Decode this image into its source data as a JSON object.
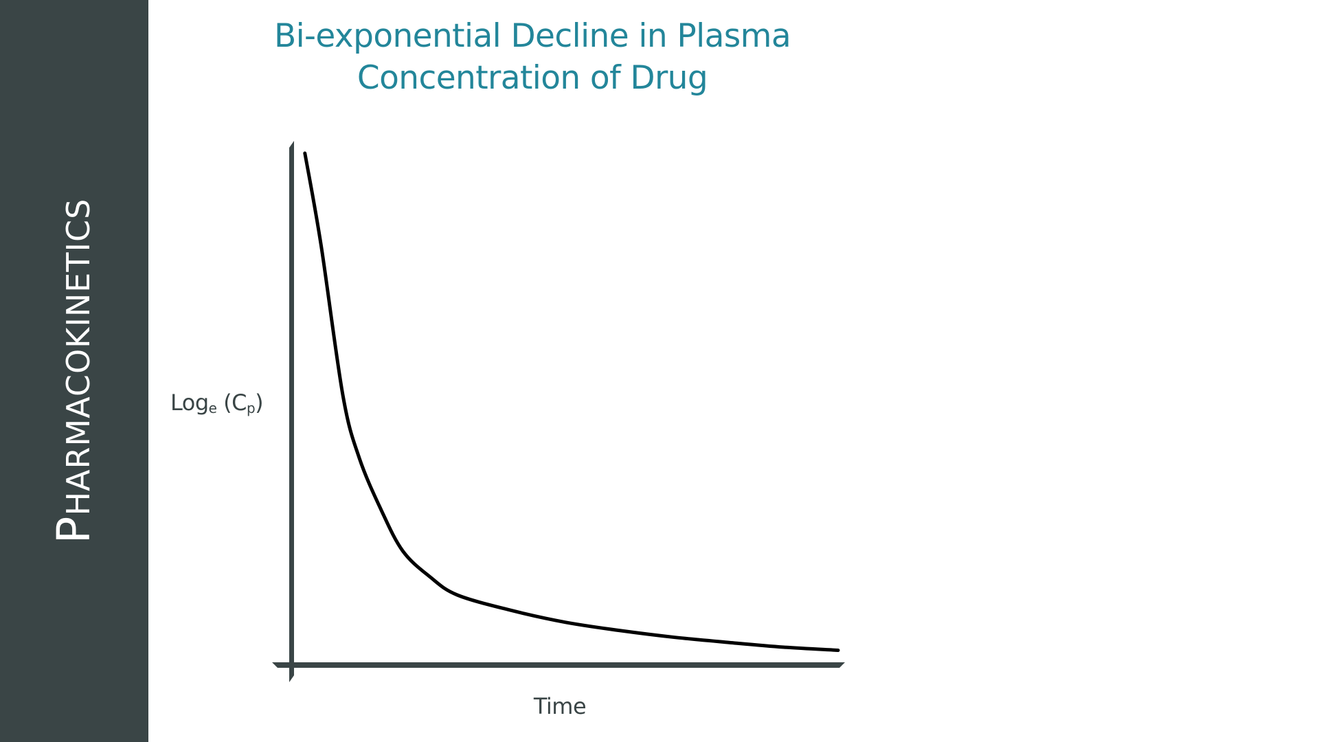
{
  "sidebar": {
    "title": "Pharmacokinetics"
  },
  "colors": {
    "sidebar_bg": "#3a4546",
    "sidebar_text": "#ffffff",
    "title": "#23869a",
    "axis": "#3a4546",
    "curve": "#000000",
    "label": "#3a4546"
  },
  "chart_data": {
    "type": "line",
    "title": "Bi-exponential Decline in Plasma Concentration of Drug",
    "title_lines": [
      "Bi-exponential Decline in Plasma",
      "Concentration of Drug"
    ],
    "xlabel": "Time",
    "ylabel": {
      "base": "Log",
      "sub1": "e",
      "mid": " (C",
      "sub2": "p",
      "end": ")"
    },
    "grid": false,
    "legend": "none",
    "xlim": [
      0,
      10
    ],
    "ylim": [
      0,
      10
    ],
    "series": [
      {
        "name": "Loge(Cp)",
        "x": [
          0.2,
          0.5,
          0.9,
          1.2,
          1.6,
          2.0,
          2.5,
          3.0,
          4.0,
          5.0,
          6.0,
          7.0,
          8.0,
          9.0,
          10.0
        ],
        "y": [
          9.8,
          8.0,
          5.1,
          3.9,
          2.9,
          2.1,
          1.6,
          1.25,
          0.95,
          0.72,
          0.56,
          0.43,
          0.33,
          0.24,
          0.18
        ]
      }
    ]
  }
}
